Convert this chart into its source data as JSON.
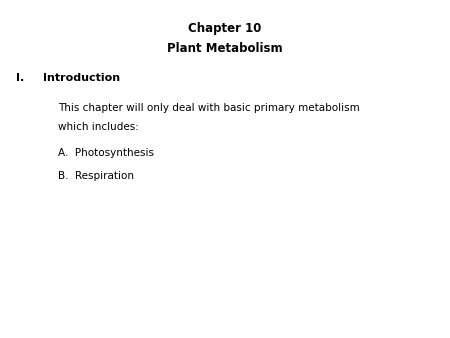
{
  "background_color": "#ffffff",
  "title1": "Chapter 10",
  "title2": "Plant Metabolism",
  "section_label": "I.",
  "section_title": "Introduction",
  "body_line1": "This chapter will only deal with basic primary metabolism",
  "body_line2": "which includes:",
  "item_a": "A.  Photosynthesis",
  "item_b": "B.  Respiration",
  "title_fontsize": 8.5,
  "body_fontsize": 7.5,
  "section_fontsize": 8.0
}
